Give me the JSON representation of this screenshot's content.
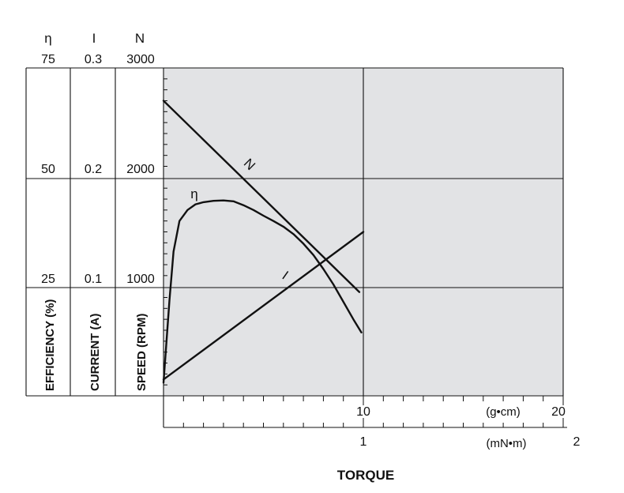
{
  "chart_data": {
    "type": "line",
    "xlabel": "TORQUE",
    "x_axes": [
      {
        "unit": "(g•cm)",
        "range": [
          0,
          20
        ],
        "labeled_ticks": [
          "10",
          "20"
        ]
      },
      {
        "unit": "(mN•m)",
        "range": [
          0,
          2
        ],
        "labeled_ticks": [
          "1",
          "2"
        ]
      }
    ],
    "y_axes": [
      {
        "symbol": "η",
        "label": "EFFICIENCY (%)",
        "range": [
          0,
          75
        ],
        "ticks": [
          "25",
          "50",
          "75"
        ]
      },
      {
        "symbol": "I",
        "label": "CURRENT (A)",
        "range": [
          0,
          0.3
        ],
        "ticks": [
          "0.1",
          "0.2",
          "0.3"
        ]
      },
      {
        "symbol": "N",
        "label": "SPEED (RPM)",
        "range": [
          0,
          3000
        ],
        "ticks": [
          "1000",
          "2000",
          "3000"
        ]
      }
    ],
    "series": [
      {
        "name": "N",
        "axis": "speed",
        "x": [
          0,
          9.8
        ],
        "y": [
          2700,
          950
        ]
      },
      {
        "name": "I",
        "axis": "current",
        "x": [
          0,
          10
        ],
        "y": [
          0.015,
          0.15
        ]
      },
      {
        "name": "η",
        "axis": "efficiency",
        "x": [
          0,
          0.3,
          0.5,
          0.8,
          1.2,
          1.6,
          2.0,
          2.5,
          3.0,
          3.5,
          4.0,
          4.5,
          5.0,
          5.5,
          6.0,
          6.5,
          7.0,
          7.5,
          8.0,
          8.5,
          9.0,
          9.5,
          9.9
        ],
        "y": [
          3,
          22,
          33,
          40,
          42.5,
          43.8,
          44.3,
          44.6,
          44.7,
          44.5,
          43.6,
          42.5,
          41.2,
          40,
          38.7,
          37,
          34.8,
          32.2,
          29,
          25.5,
          21.5,
          17.5,
          14.5
        ]
      }
    ],
    "grid": true,
    "background": "#e2e3e5"
  }
}
